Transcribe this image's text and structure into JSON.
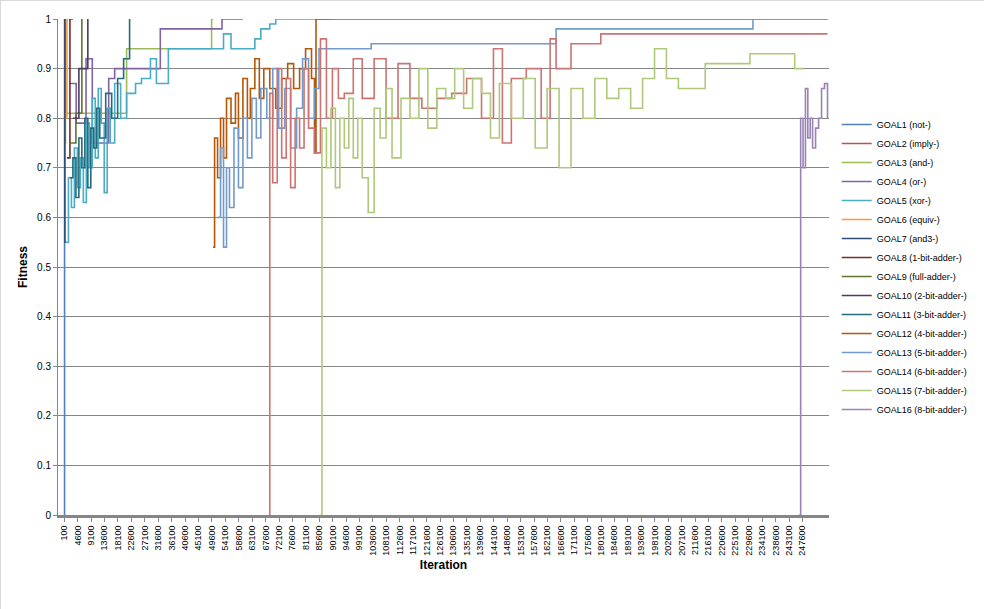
{
  "chart_data": {
    "type": "line",
    "x_label": "Iteration",
    "y_label": "Fitness",
    "line_style": "step",
    "grid": true,
    "legend": "right",
    "xlim": [
      -2000,
      256500
    ],
    "xticks": [
      100,
      4600,
      9100,
      13600,
      18100,
      22600,
      27100,
      31600,
      36100,
      40600,
      45100,
      49600,
      54100,
      58600,
      63100,
      67600,
      72100,
      76600,
      81100,
      85600,
      90100,
      94600,
      99100,
      103600,
      108100,
      112600,
      117100,
      121600,
      126100,
      130600,
      135100,
      139600,
      144100,
      148600,
      153100,
      157600,
      162100,
      166600,
      171100,
      175600,
      180100,
      184600,
      189100,
      193600,
      198100,
      202600,
      207100,
      211600,
      216100,
      220600,
      225100,
      229600,
      234100,
      238600,
      243100,
      247600
    ],
    "ylim": [
      0,
      1
    ],
    "yticks": [
      0,
      0.1,
      0.2,
      0.3,
      0.4,
      0.5,
      0.6,
      0.7,
      0.8,
      0.9,
      1
    ],
    "series": [
      {
        "name": "GOAL1 (not-)",
        "color": "#4F81BD",
        "x": [
          100,
          200,
          300
        ],
        "values": [
          0,
          1,
          1
        ]
      },
      {
        "name": "GOAL2 (imply-)",
        "color": "#C0504D",
        "x": [
          100,
          300,
          500
        ],
        "values": [
          0.75,
          1,
          1
        ]
      },
      {
        "name": "GOAL3 (and-)",
        "color": "#9BBB59",
        "x": [
          300,
          500,
          21000,
          49500,
          50000
        ],
        "values": [
          0.75,
          0.81,
          0.94,
          1,
          1
        ]
      },
      {
        "name": "GOAL4 (or-)",
        "color": "#8064A2",
        "x": [
          1700,
          4100,
          7400,
          9500,
          11000,
          15000,
          17000,
          32300,
          53000,
          60000
        ],
        "values": [
          0.87,
          0.79,
          0.92,
          0.75,
          0.75,
          0.88,
          0.9,
          0.98,
          1,
          1
        ]
      },
      {
        "name": "GOAL5 (xor-)",
        "color": "#4BACC6",
        "x": [
          100,
          1500,
          2500,
          3500,
          4500,
          5500,
          6500,
          7500,
          8500,
          9500,
          10500,
          11500,
          12500,
          13500,
          14500,
          15500,
          17000,
          19000,
          21000,
          24000,
          26000,
          29000,
          31000,
          35000,
          50000,
          53500,
          56000,
          61000,
          64000,
          66000,
          69000,
          71000,
          85000,
          90000
        ],
        "values": [
          0.55,
          0.68,
          0.62,
          0.74,
          0.66,
          0.72,
          0.63,
          0.79,
          0.7,
          0.84,
          0.72,
          0.86,
          0.79,
          0.65,
          0.82,
          0.75,
          0.87,
          0.8,
          0.85,
          0.87,
          0.88,
          0.92,
          0.87,
          0.94,
          0.94,
          0.97,
          0.94,
          0.94,
          0.96,
          0.98,
          0.99,
          1,
          1,
          1
        ]
      },
      {
        "name": "GOAL6 (equiv-)",
        "color": "#F79646",
        "x": [
          500,
          1000,
          1500
        ],
        "values": [
          0.8,
          1,
          1
        ]
      },
      {
        "name": "GOAL7 (and3-)",
        "color": "#2C4D75",
        "x": [
          100,
          300,
          600
        ],
        "values": [
          0.55,
          1,
          1
        ]
      },
      {
        "name": "GOAL8 (1-bit-adder-)",
        "color": "#772C2A",
        "x": [
          1000,
          2000,
          3000
        ],
        "values": [
          0.72,
          1,
          1
        ]
      },
      {
        "name": "GOAL9 (full-adder-)",
        "color": "#5F7530",
        "x": [
          2000,
          4000,
          6000
        ],
        "values": [
          0.75,
          0.81,
          1
        ]
      },
      {
        "name": "GOAL10 (2-bit-adder-)",
        "color": "#4D3B62",
        "x": [
          3000,
          5000,
          8000
        ],
        "values": [
          0.8,
          0.9,
          1
        ]
      },
      {
        "name": "GOAL11 (3-bit-adder-)",
        "color": "#276A7C",
        "x": [
          2000,
          3000,
          4000,
          5000,
          6000,
          7000,
          8000,
          9000,
          10000,
          11000,
          12000,
          14000,
          16000,
          18000,
          20000,
          22000
        ],
        "values": [
          0.68,
          0.72,
          0.64,
          0.76,
          0.7,
          0.8,
          0.66,
          0.78,
          0.74,
          0.82,
          0.76,
          0.85,
          0.8,
          0.88,
          0.92,
          1
        ]
      },
      {
        "name": "GOAL12 (4-bit-adder-)",
        "color": "#B65708",
        "x": [
          50000,
          50500,
          51500,
          52500,
          53500,
          54500,
          56000,
          57500,
          58500,
          60000,
          61500,
          62500,
          64000,
          65500,
          67000,
          69000,
          71000,
          73000,
          75000,
          77000,
          79000,
          81000,
          83000,
          84000,
          84500,
          256000
        ],
        "values": [
          0.54,
          0.76,
          0.68,
          0.8,
          0.72,
          0.84,
          0.79,
          0.85,
          0.76,
          0.88,
          0.8,
          0.86,
          0.92,
          0.84,
          0.9,
          0.86,
          0.82,
          0.88,
          0.91,
          0.86,
          0.9,
          0.94,
          0.88,
          0.73,
          1,
          1
        ]
      },
      {
        "name": "GOAL13 (5-bit-adder-)",
        "color": "#729ACA",
        "x": [
          51500,
          52500,
          53500,
          54500,
          55500,
          57000,
          58500,
          60000,
          61500,
          63000,
          64500,
          66000,
          68000,
          70000,
          72000,
          74000,
          76000,
          78000,
          80000,
          82000,
          84000,
          85500,
          87000,
          103000,
          165000,
          231000,
          256000
        ],
        "values": [
          0.6,
          0.74,
          0.54,
          0.7,
          0.62,
          0.78,
          0.66,
          0.8,
          0.72,
          0.84,
          0.76,
          0.86,
          0.8,
          0.9,
          0.78,
          0.86,
          0.74,
          0.82,
          0.92,
          0.8,
          0.86,
          0.94,
          0.94,
          0.95,
          0.98,
          1,
          1
        ]
      },
      {
        "name": "GOAL14 (6-bit-adder-)",
        "color": "#CD7371",
        "x": [
          68800,
          69000,
          70000,
          71500,
          73000,
          74500,
          76000,
          77500,
          79000,
          80500,
          82000,
          84000,
          86000,
          88000,
          90000,
          92000,
          94000,
          97000,
          100000,
          104000,
          108000,
          112000,
          116000,
          120000,
          125000,
          130000,
          135000,
          140000,
          144000,
          147000,
          150000,
          155000,
          160000,
          163000,
          165000,
          170000,
          180000,
          256000
        ],
        "values": [
          0,
          0.85,
          0.67,
          0.9,
          0.72,
          0.88,
          0.66,
          0.8,
          0.74,
          0.9,
          0.78,
          0.73,
          0.96,
          0.8,
          0.9,
          0.84,
          0.85,
          0.92,
          0.84,
          0.92,
          0.8,
          0.91,
          0.84,
          0.82,
          0.84,
          0.85,
          0.88,
          0.8,
          0.94,
          0.75,
          0.88,
          0.9,
          0.8,
          0.96,
          0.9,
          0.95,
          0.97,
          0.97
        ]
      },
      {
        "name": "GOAL15 (7-bit-adder-)",
        "color": "#AFC97A",
        "x": [
          86000,
          86500,
          88000,
          89500,
          91000,
          92500,
          94000,
          95500,
          97000,
          98500,
          100000,
          102000,
          104000,
          106000,
          108000,
          110000,
          113000,
          116000,
          119000,
          122000,
          125000,
          128000,
          131000,
          134000,
          137000,
          140000,
          143000,
          146000,
          150000,
          154000,
          158000,
          162000,
          166000,
          170000,
          174000,
          178000,
          182000,
          186000,
          190000,
          194000,
          198000,
          202000,
          206000,
          215000,
          230000,
          245000,
          248000
        ],
        "values": [
          0,
          0.78,
          0.7,
          0.82,
          0.66,
          0.8,
          0.74,
          0.84,
          0.72,
          0.8,
          0.68,
          0.61,
          0.82,
          0.76,
          0.86,
          0.72,
          0.84,
          0.8,
          0.9,
          0.78,
          0.86,
          0.84,
          0.9,
          0.82,
          0.88,
          0.85,
          0.76,
          0.87,
          0.8,
          0.88,
          0.74,
          0.86,
          0.7,
          0.86,
          0.8,
          0.88,
          0.84,
          0.86,
          0.82,
          0.88,
          0.94,
          0.88,
          0.86,
          0.91,
          0.93,
          0.9,
          0.9
        ]
      },
      {
        "name": "GOAL16 (8-bit-adder-)",
        "color": "#9983B5",
        "x": [
          246500,
          247000,
          247800,
          248600,
          249400,
          250200,
          251000,
          252000,
          253000,
          254000,
          255000,
          256000
        ],
        "values": [
          0,
          0.8,
          0.7,
          0.86,
          0.76,
          0.8,
          0.74,
          0.78,
          0.8,
          0.86,
          0.87,
          0.8
        ]
      }
    ]
  }
}
